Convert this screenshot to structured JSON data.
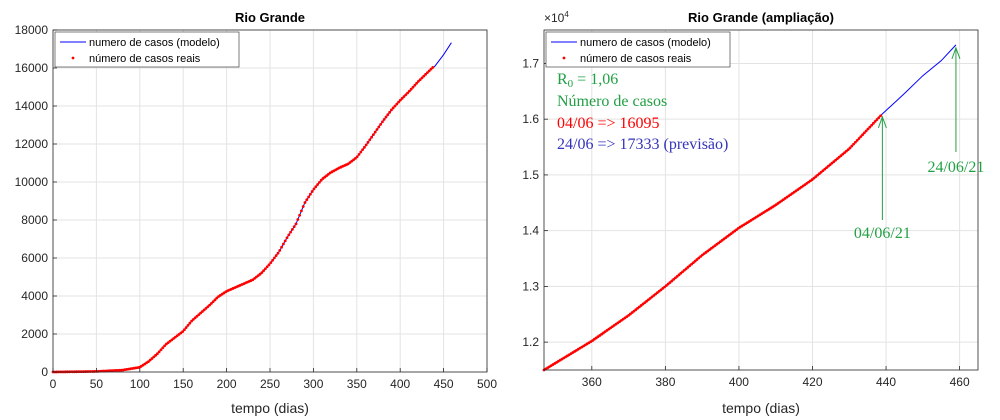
{
  "chart_data": [
    {
      "type": "line",
      "title": "Rio Grande",
      "xlabel": "tempo (dias)",
      "ylabel": "",
      "xlim": [
        0,
        500
      ],
      "ylim": [
        0,
        18000
      ],
      "xticks": [
        0,
        50,
        100,
        150,
        200,
        250,
        300,
        350,
        400,
        450,
        500
      ],
      "yticks": [
        0,
        2000,
        4000,
        6000,
        8000,
        10000,
        12000,
        14000,
        16000,
        18000
      ],
      "grid": true,
      "legend": "top-left",
      "series": [
        {
          "name": "numero de casos (modelo)",
          "style": "line",
          "color": "#0000ff",
          "x": [
            0,
            50,
            80,
            100,
            110,
            120,
            130,
            140,
            150,
            160,
            170,
            180,
            190,
            200,
            210,
            220,
            230,
            240,
            250,
            260,
            270,
            280,
            290,
            300,
            310,
            320,
            330,
            340,
            350,
            360,
            370,
            380,
            390,
            400,
            410,
            420,
            430,
            440,
            450,
            459
          ],
          "y": [
            0,
            30,
            100,
            250,
            550,
            950,
            1450,
            1800,
            2150,
            2700,
            3100,
            3500,
            3950,
            4250,
            4450,
            4650,
            4850,
            5200,
            5700,
            6300,
            7100,
            7800,
            8900,
            9600,
            10150,
            10500,
            10750,
            10950,
            11300,
            11900,
            12550,
            13200,
            13800,
            14300,
            14750,
            15250,
            15700,
            16100,
            16700,
            17333
          ]
        },
        {
          "name": "número de casos reais",
          "style": "markers",
          "color": "#ff0000",
          "x": [
            0,
            50,
            80,
            100,
            110,
            120,
            130,
            140,
            150,
            160,
            170,
            180,
            190,
            200,
            210,
            220,
            230,
            240,
            250,
            260,
            270,
            280,
            290,
            300,
            310,
            320,
            330,
            340,
            350,
            360,
            370,
            380,
            390,
            400,
            410,
            420,
            430,
            439
          ],
          "y": [
            0,
            30,
            100,
            250,
            550,
            950,
            1450,
            1800,
            2150,
            2700,
            3100,
            3500,
            3950,
            4250,
            4450,
            4650,
            4850,
            5200,
            5700,
            6300,
            7100,
            7800,
            8900,
            9600,
            10150,
            10500,
            10750,
            10950,
            11300,
            11900,
            12550,
            13200,
            13800,
            14300,
            14750,
            15250,
            15700,
            16095
          ]
        }
      ]
    },
    {
      "type": "line",
      "title": "Rio Grande (ampliação)",
      "xlabel": "tempo (dias)",
      "ylabel": "",
      "xlim": [
        347,
        465
      ],
      "ylim": [
        11500,
        17600
      ],
      "xticks": [
        360,
        380,
        400,
        420,
        440,
        460
      ],
      "yticks": [
        12000,
        13000,
        14000,
        15000,
        16000,
        17000
      ],
      "ytick_labels": [
        "1.2",
        "1.3",
        "1.4",
        "1.5",
        "1.6",
        "1.7"
      ],
      "y_exponent": "×10",
      "y_exponent_power": "4",
      "grid": true,
      "legend": "top-left",
      "series": [
        {
          "name": "numero de casos (modelo)",
          "style": "line",
          "color": "#0000ff",
          "x": [
            347,
            350,
            360,
            370,
            380,
            390,
            400,
            410,
            420,
            430,
            439,
            445,
            450,
            455,
            459
          ],
          "y": [
            11500,
            11620,
            12020,
            12480,
            13000,
            13560,
            14050,
            14460,
            14920,
            15470,
            16095,
            16460,
            16780,
            17050,
            17333
          ]
        },
        {
          "name": "número de casos reais",
          "style": "markers",
          "color": "#ff0000",
          "x": [
            347,
            350,
            360,
            370,
            380,
            390,
            400,
            410,
            420,
            430,
            439
          ],
          "y": [
            11500,
            11620,
            12020,
            12480,
            13000,
            13560,
            14050,
            14460,
            14920,
            15470,
            16095
          ]
        }
      ],
      "annotations": {
        "r0_label": "R",
        "r0_sub": "0",
        "r0_value": " = 1,06",
        "casos_label": "Número de casos",
        "line1": "04/06 => 16095",
        "line2": "24/06 => 17333 (previsão)",
        "arrow1_label": "04/06/21",
        "arrow2_label": "24/06/21",
        "arrow1_x": 439,
        "arrow1_y": 16095,
        "arrow2_x": 459,
        "arrow2_y": 17333,
        "green": "#22a044",
        "red": "#ff0000",
        "blue": "#3333bb"
      }
    }
  ]
}
